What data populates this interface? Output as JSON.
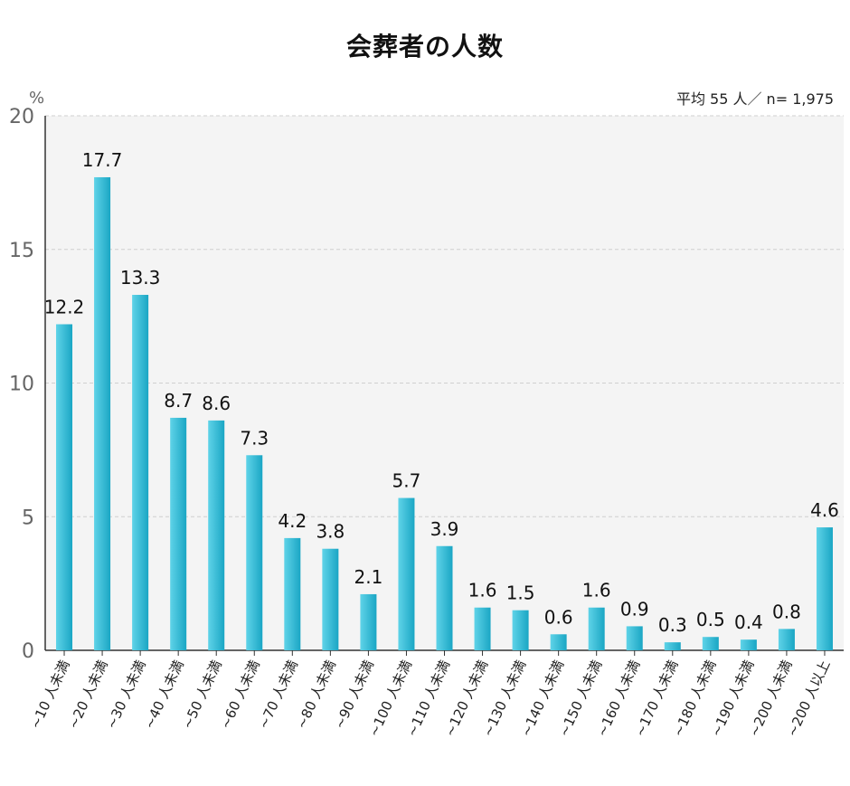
{
  "chart_data": {
    "type": "bar",
    "title": "会葬者の人数",
    "note": "平均 55 人／ n= 1,975",
    "ylabel": "%",
    "xlabel": "",
    "ylim": [
      0,
      20
    ],
    "yticks": [
      0,
      5,
      10,
      15,
      20
    ],
    "grid": true,
    "categories": [
      "~10 人未満",
      "~20 人未満",
      "~30 人未満",
      "~40 人未満",
      "~50 人未満",
      "~60 人未満",
      "~70 人未満",
      "~80 人未満",
      "~90 人未満",
      "~100 人未満",
      "~110 人未満",
      "~120 人未満",
      "~130 人未満",
      "~140 人未満",
      "~150 人未満",
      "~160 人未満",
      "~170 人未満",
      "~180 人未満",
      "~190 人未満",
      "~200 人未満",
      "~200 人以上"
    ],
    "values": [
      12.2,
      17.7,
      13.3,
      8.7,
      8.6,
      7.3,
      4.2,
      3.8,
      2.1,
      5.7,
      3.9,
      1.6,
      1.5,
      0.6,
      1.6,
      0.9,
      0.3,
      0.5,
      0.4,
      0.8,
      4.6
    ],
    "value_labels": [
      "12.2",
      "17.7",
      "13.3",
      "8.7",
      "8.6",
      "7.3",
      "4.2",
      "3.8",
      "2.1",
      "5.7",
      "3.9",
      "1.6",
      "1.5",
      "0.6",
      "1.6",
      "0.9",
      "0.3",
      "0.5",
      "0.4",
      "0.8",
      "4.6"
    ],
    "colors": {
      "bar_light": "#5fd3e8",
      "bar_dark": "#1aa6c4",
      "plot_bg": "#f4f4f4",
      "grid": "#cfcfcf",
      "axis": "#333333",
      "tick_text": "#666666"
    }
  }
}
